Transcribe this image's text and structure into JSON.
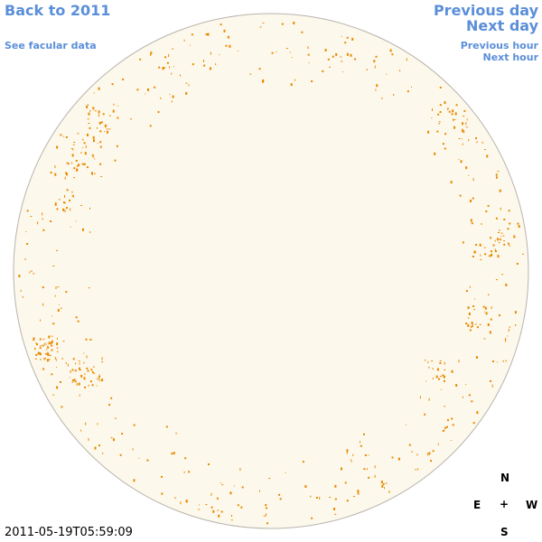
{
  "links": {
    "back": "Back to 2011",
    "facular": "See facular data",
    "previous_day": "Previous day",
    "next_day": "Next day",
    "previous_hour": "Previous hour",
    "next_hour": "Next hour"
  },
  "compass": {
    "north": "N",
    "east": "E",
    "center": "+",
    "west": "W",
    "south": "S"
  },
  "timestamp": "2011-05-19T05:59:09"
}
